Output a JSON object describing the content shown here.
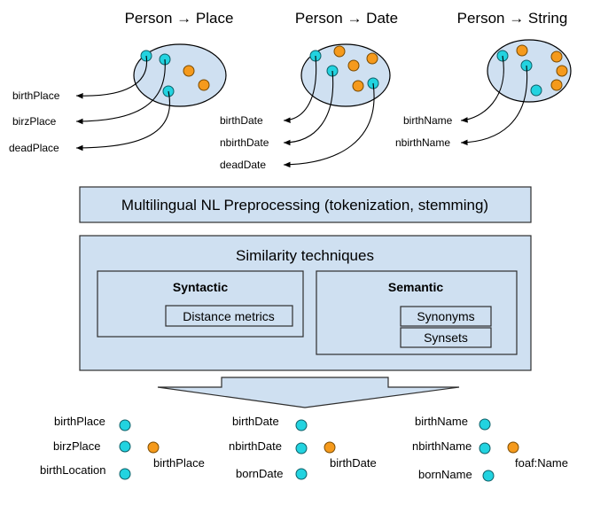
{
  "colors": {
    "box_fill": "#cfe0f1",
    "instance_dot": "#22d3e0",
    "class_dot": "#f59a1c"
  },
  "groups": [
    {
      "title": "Person → Place",
      "labels": [
        "birthPlace",
        "birzPlace",
        "deadPlace"
      ]
    },
    {
      "title": "Person → Date",
      "labels": [
        "birthDate",
        "nbirthDate",
        "deadDate"
      ]
    },
    {
      "title": "Person → String",
      "labels": [
        "birthName",
        "nbirthName"
      ]
    }
  ],
  "preprocessing": {
    "label": "Multilingual NL Preprocessing (tokenization, stemming)"
  },
  "similarity": {
    "title": "Similarity techniques",
    "syntactic": {
      "title": "Syntactic",
      "items": [
        "Distance metrics"
      ]
    },
    "semantic": {
      "title": "Semantic",
      "items": [
        "Synonyms",
        "Synsets"
      ]
    }
  },
  "results": [
    {
      "members": [
        "birthPlace",
        "birzPlace",
        "birthLocation"
      ],
      "target": "birthPlace"
    },
    {
      "members": [
        "birthDate",
        "nbirthDate",
        "bornDate"
      ],
      "target": "birthDate"
    },
    {
      "members": [
        "birthName",
        "nbirthName",
        "bornName"
      ],
      "target": "foaf:Name"
    }
  ]
}
